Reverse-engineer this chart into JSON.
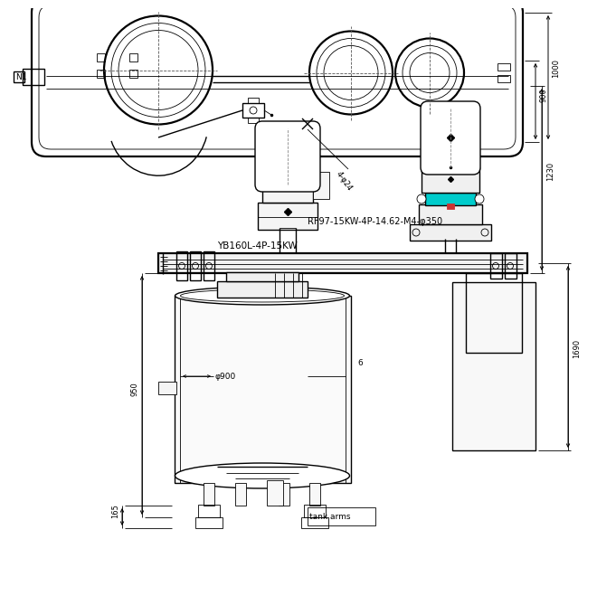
{
  "bg": "#ffffff",
  "lc": "#000000",
  "cyan": "#00cccc",
  "lw_thin": 0.6,
  "lw_med": 1.0,
  "lw_thick": 1.6,
  "labels": {
    "N1": "N1",
    "rf": "RF97-15KW-4P-14.62-M4-φ350",
    "yb": "YB160L-4P-15KW",
    "d900_top": "900",
    "d1000_top": "1000",
    "d4phi": "4-φ24",
    "d1230": "1230",
    "d1690": "1690",
    "d950": "950",
    "d165": "165",
    "dphi900": "φ900",
    "d6": "6",
    "tank_arms": "tank arms"
  }
}
